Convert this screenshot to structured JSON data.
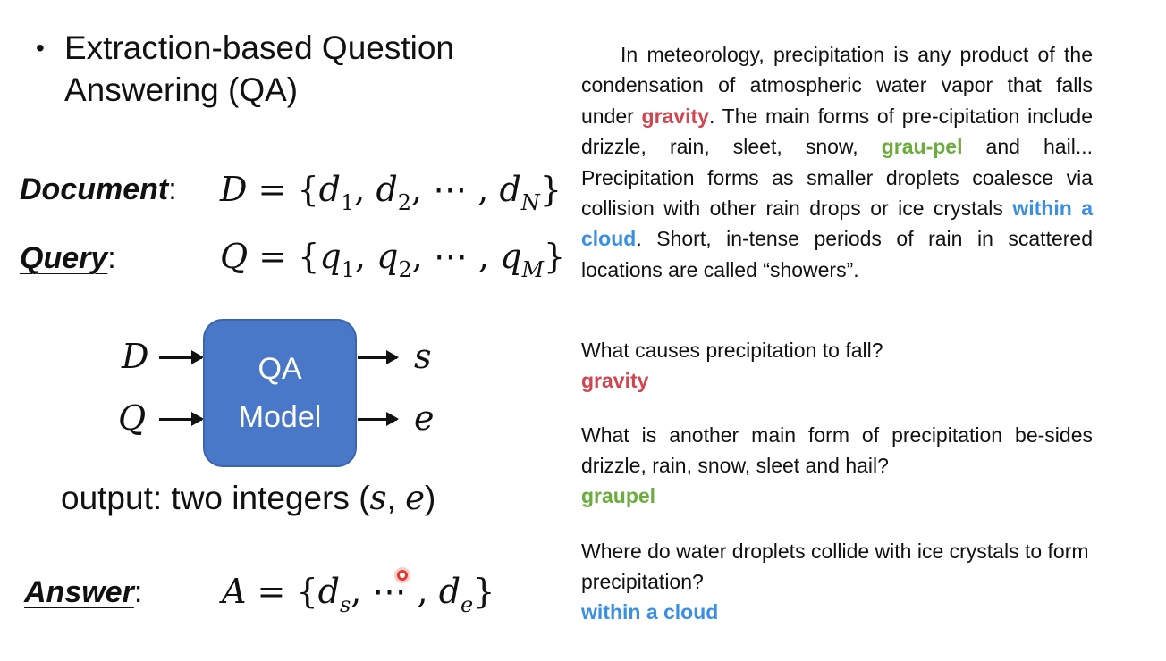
{
  "slide": {
    "bullet": "•",
    "title": "Extraction-based Question Answering (QA)",
    "document": {
      "label": "Document",
      "colon": ":",
      "lhs": "D",
      "eq": " = {",
      "e1": "d",
      "s1": "1",
      "e2": "d",
      "s2": "2",
      "dots": ", ⋯ , ",
      "e3": "d",
      "s3": "N",
      "close": "}"
    },
    "query": {
      "label": "Query",
      "colon": ":",
      "lhs": "Q",
      "eq": " = {",
      "e1": "q",
      "s1": "1",
      "e2": "q",
      "s2": "2",
      "dots": ", ⋯ , ",
      "e3": "q",
      "s3": "M",
      "close": "}"
    },
    "model": {
      "line1": "QA",
      "line2": "Model",
      "in1": "D",
      "in2": "Q",
      "out1": "s",
      "out2": "e"
    },
    "output": {
      "prefix": "output: two integers (",
      "s": "s",
      "comma": ", ",
      "e": "e",
      "suffix": ")"
    },
    "answer": {
      "label": "Answer",
      "colon": ":",
      "lhs": "A",
      "eq": " = {",
      "e1": "d",
      "s1": "s",
      "dots": ", ⋯ , ",
      "e3": "d",
      "s3": "e",
      "close": "}"
    }
  },
  "passage": {
    "part1": "In meteorology, precipitation is any product of the condensation of atmospheric water vapor that falls under ",
    "hl_gravity": "gravity",
    "part2": ". The main forms of pre-cipitation include drizzle, rain, sleet, snow, ",
    "hl_graupel": "grau-pel",
    "part3": " and hail... Precipitation forms as smaller droplets coalesce via collision with other rain drops or ice crystals ",
    "hl_cloud": "within a cloud",
    "part4": ". Short, in-tense periods of rain in scattered locations are called “showers”."
  },
  "questions": [
    {
      "question": "What causes precipitation to fall?",
      "answer": "gravity"
    },
    {
      "question": "What is another main form of precipitation be-sides drizzle, rain, snow, sleet and hail?",
      "answer": "graupel"
    },
    {
      "question": "Where do water droplets collide with ice crystals to form precipitation?",
      "answer": "within a cloud"
    }
  ],
  "colors": {
    "box": "#4a78c8",
    "red": "#d0454f",
    "green": "#6aac3d",
    "blue": "#3a8fe2",
    "pointer": "#e23a2e"
  }
}
